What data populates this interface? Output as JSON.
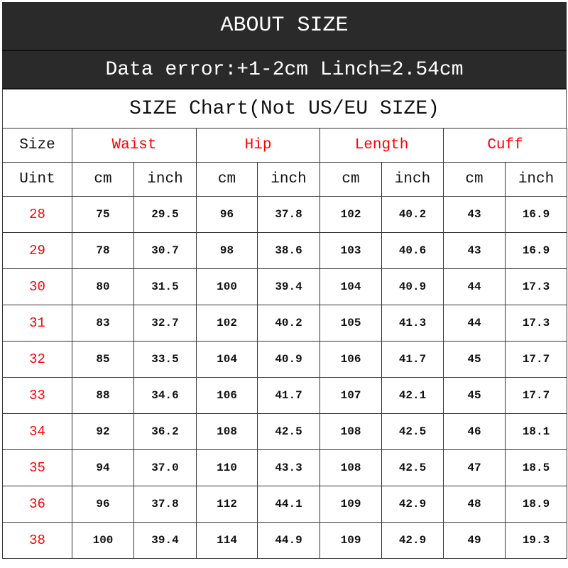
{
  "header": {
    "title": "ABOUT SIZE",
    "note": "Data error:+1-2cm Linch=2.54cm"
  },
  "chart_title": "SIZE Chart(Not US/EU SIZE)",
  "colors": {
    "header_bg": "#2a2a2a",
    "accent": "#ff0000"
  },
  "columns": {
    "size": "Size",
    "unit": "Uint",
    "groups": [
      "Waist",
      "Hip",
      "Length",
      "Cuff"
    ],
    "cm": "cm",
    "inch": "inch"
  },
  "rows": [
    [
      "28",
      "75",
      "29.5",
      "96",
      "37.8",
      "102",
      "40.2",
      "43",
      "16.9"
    ],
    [
      "29",
      "78",
      "30.7",
      "98",
      "38.6",
      "103",
      "40.6",
      "43",
      "16.9"
    ],
    [
      "30",
      "80",
      "31.5",
      "100",
      "39.4",
      "104",
      "40.9",
      "44",
      "17.3"
    ],
    [
      "31",
      "83",
      "32.7",
      "102",
      "40.2",
      "105",
      "41.3",
      "44",
      "17.3"
    ],
    [
      "32",
      "85",
      "33.5",
      "104",
      "40.9",
      "106",
      "41.7",
      "45",
      "17.7"
    ],
    [
      "33",
      "88",
      "34.6",
      "106",
      "41.7",
      "107",
      "42.1",
      "45",
      "17.7"
    ],
    [
      "34",
      "92",
      "36.2",
      "108",
      "42.5",
      "108",
      "42.5",
      "46",
      "18.1"
    ],
    [
      "35",
      "94",
      "37.0",
      "110",
      "43.3",
      "108",
      "42.5",
      "47",
      "18.5"
    ],
    [
      "36",
      "96",
      "37.8",
      "112",
      "44.1",
      "109",
      "42.9",
      "48",
      "18.9"
    ],
    [
      "38",
      "100",
      "39.4",
      "114",
      "44.9",
      "109",
      "42.9",
      "49",
      "19.3"
    ]
  ]
}
